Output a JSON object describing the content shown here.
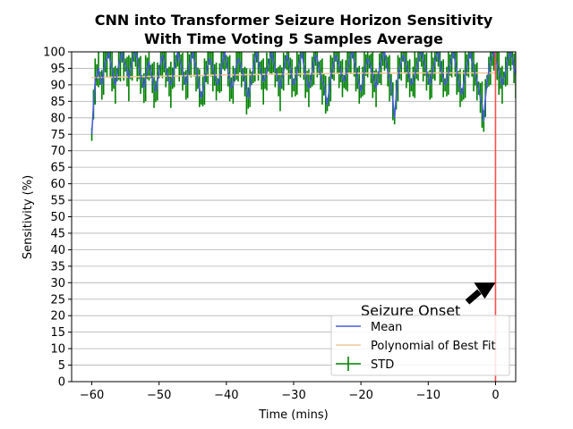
{
  "chart_data": {
    "type": "line",
    "title_line1": "CNN into Transformer Seizure Horizon Sensitivity",
    "title_line2": "With Time Voting 5 Samples Average",
    "xlabel": "Time (mins)",
    "ylabel": "Sensitivity (%)",
    "xlim": [
      -63,
      3
    ],
    "ylim": [
      0,
      100
    ],
    "xticks": [
      -60,
      -50,
      -40,
      -30,
      -20,
      -10,
      0
    ],
    "xtick_labels": [
      "−60",
      "−50",
      "−40",
      "−30",
      "−20",
      "−10",
      "0"
    ],
    "yticks": [
      0,
      5,
      10,
      15,
      20,
      25,
      30,
      35,
      40,
      45,
      50,
      55,
      60,
      65,
      70,
      75,
      80,
      85,
      90,
      95,
      100
    ],
    "ytick_labels": [
      "0",
      "5",
      "10",
      "15",
      "20",
      "25",
      "30",
      "35",
      "40",
      "45",
      "50",
      "55",
      "60",
      "65",
      "70",
      "75",
      "80",
      "85",
      "90",
      "95",
      "100"
    ],
    "grid": "horizontal",
    "legend": {
      "placement": "lower-right",
      "entries": [
        {
          "label": "Mean",
          "color": "#4a5bdc",
          "kind": "line"
        },
        {
          "label": "Polynomial of Best Fit",
          "color": "#f1c99a",
          "kind": "line"
        },
        {
          "label": "STD",
          "color": "#008000",
          "kind": "errorbar"
        }
      ]
    },
    "annotation": {
      "text": "Seizure Onset",
      "arrow_to": [
        0,
        30
      ],
      "color": "#000000"
    },
    "vline": {
      "x": 0,
      "color": "#ff4d4d"
    },
    "series": [
      {
        "name": "Mean",
        "color": "#4a5bdc",
        "x_start": -60,
        "x_step": 0.25,
        "values": [
          75,
          84,
          91,
          93,
          95,
          92,
          90,
          94,
          97,
          98,
          100,
          97,
          95,
          92,
          90,
          93,
          96,
          98,
          100,
          97,
          96,
          94,
          92,
          95,
          97,
          99,
          100,
          98,
          95,
          93,
          91,
          89,
          92,
          95,
          97,
          94,
          92,
          90,
          88,
          91,
          94,
          97,
          99,
          97,
          95,
          93,
          91,
          90,
          92,
          95,
          97,
          100,
          98,
          96,
          94,
          92,
          90,
          93,
          96,
          98,
          100,
          97,
          95,
          92,
          89,
          86,
          88,
          91,
          94,
          96,
          98,
          97,
          95,
          93,
          91,
          90,
          92,
          95,
          98,
          100,
          97,
          94,
          92,
          89,
          90,
          93,
          96,
          98,
          97,
          95,
          93,
          91,
          88,
          86,
          89,
          92,
          95,
          98,
          100,
          97,
          95,
          93,
          91,
          92,
          94,
          96,
          98,
          100,
          97,
          95,
          93,
          91,
          89,
          92,
          94,
          97,
          99,
          97,
          95,
          92,
          90,
          91,
          94,
          96,
          98,
          100,
          96,
          93,
          91,
          89,
          91,
          94,
          97,
          99,
          98,
          95,
          93,
          91,
          90,
          87,
          84,
          88,
          92,
          95,
          97,
          99,
          98,
          96,
          94,
          92,
          91,
          93,
          95,
          97,
          99,
          100,
          97,
          95,
          92,
          90,
          88,
          91,
          94,
          96,
          98,
          97,
          95,
          93,
          91,
          89,
          92,
          95,
          97,
          99,
          100,
          97,
          94,
          92,
          90,
          85,
          80,
          87,
          92,
          95,
          97,
          99,
          98,
          96,
          94,
          92,
          90,
          91,
          93,
          95,
          97,
          99,
          100,
          98,
          96,
          94,
          92,
          90,
          93,
          95,
          97,
          99,
          100,
          97,
          94,
          92,
          90,
          91,
          94,
          96,
          98,
          100,
          97,
          94,
          91,
          89,
          87,
          90,
          93,
          96,
          98,
          100,
          97,
          95,
          93,
          91,
          89,
          86,
          84,
          79,
          86,
          91,
          94,
          97,
          99,
          100,
          98,
          96,
          94,
          92,
          90,
          92,
          94,
          97,
          99,
          100,
          98,
          95,
          93,
          91,
          89,
          92,
          95,
          97,
          99,
          100,
          97,
          94,
          92,
          89,
          86,
          90,
          93,
          96,
          98,
          100,
          97,
          95,
          93,
          91,
          89
        ]
      },
      {
        "name": "Polynomial of Best Fit",
        "color": "#f1c99a",
        "x": [
          -60,
          -50,
          -40,
          -30,
          -20,
          -10,
          0
        ],
        "values": [
          92.2,
          92.6,
          93.0,
          93.3,
          93.5,
          93.6,
          93.6
        ]
      }
    ],
    "std": {
      "color": "#008000",
      "halfwidth_typical": 4,
      "halfwidth_min": 2,
      "halfwidth_max": 7
    }
  }
}
